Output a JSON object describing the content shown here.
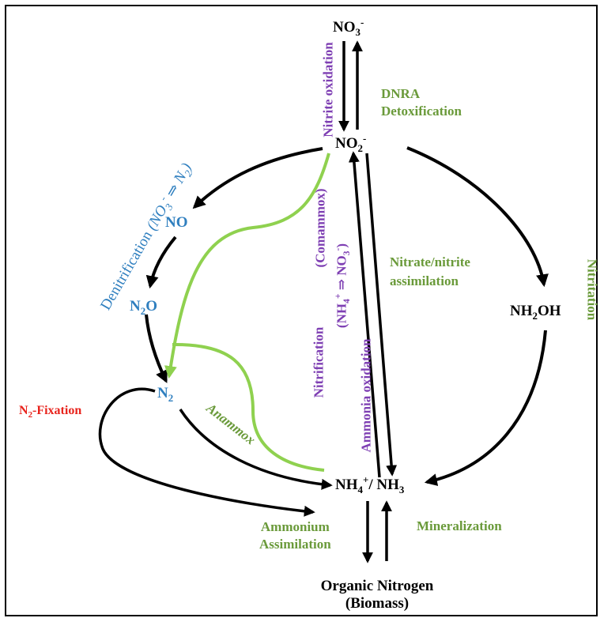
{
  "colors": {
    "black": "#000000",
    "green": "#8fd14f",
    "green_text": "#6a9a3a",
    "blue_text": "#2f7fbf",
    "purple_text": "#7e3fb3",
    "red_text": "#e8231c"
  },
  "species": {
    "no3": {
      "main": "NO",
      "sub": "3",
      "sup": "-"
    },
    "no2": {
      "main": "NO",
      "sub": "2",
      "sup": "-"
    },
    "no": "NO",
    "n2o": {
      "a": "N",
      "sub": "2",
      "b": "O"
    },
    "n2": {
      "main": "N",
      "sub": "2"
    },
    "nh2oh": {
      "a": "NH",
      "sub": "2",
      "b": "OH"
    },
    "nh4": {
      "a": "NH",
      "sub1": "4",
      "sup": "+",
      "b": "/ NH",
      "sub2": "3"
    },
    "organic_line1": "Organic Nitrogen",
    "organic_line2": "(Biomass)"
  },
  "processes": {
    "dnra_line1": "DNRA",
    "dnra_line2": "Detoxification",
    "nitrite_oxidation": "Nitrite oxidation",
    "denitrification": {
      "text": "Denitrification",
      "formula_a": "(NO",
      "sub1": "3",
      "sup": "-",
      "arrow": " ⇒ N",
      "sub2": "2",
      "close": ")"
    },
    "comammox": "(Comammox)",
    "nitrification_formula": {
      "a": "(NH",
      "sub1": "4",
      "sup1": "+",
      "arrow": " ⇒ NO",
      "sub2": "3",
      "sup2": "-",
      "close": ")"
    },
    "nitrification": "Nitrification",
    "ammonia_oxidation": "Ammonia oxidation",
    "nitrate_assim_line1": "Nitrate/nitrite",
    "nitrate_assim_line2": "assimilation",
    "nitritation": "Nitritation",
    "n2_fixation": {
      "a": "N",
      "sub": "2",
      "b": "-Fixation"
    },
    "anammox": "Anammox",
    "ammonium_line1": "Ammonium",
    "ammonium_line2": "Assimilation",
    "mineralization": "Mineralization"
  }
}
